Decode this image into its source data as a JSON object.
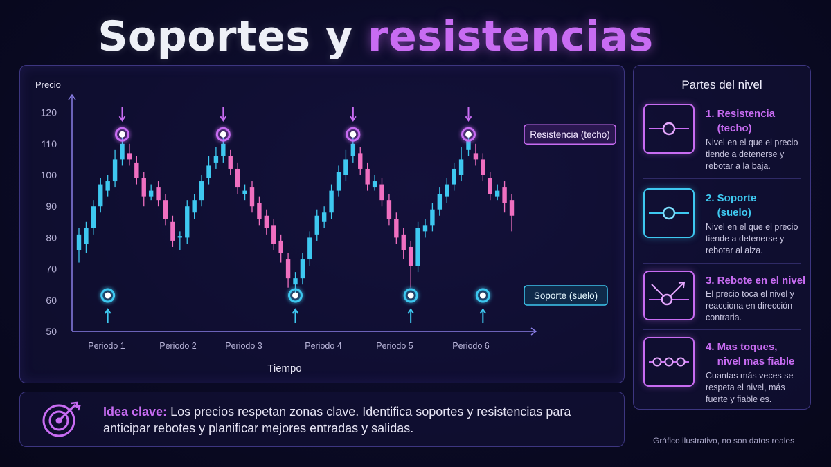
{
  "title": {
    "part1": "Soportes y",
    "part2": "resistencias"
  },
  "colors": {
    "resistance": "#c86cf2",
    "support": "#3ec8f0",
    "candle_up": "#3ec8f0",
    "candle_down": "#f06fc0",
    "axis": "#8a7ee6"
  },
  "chart_data": {
    "type": "candlestick",
    "ylabel": "Precio",
    "xlabel": "Tiempo",
    "y_ticks": [
      120,
      110,
      100,
      90,
      80,
      70,
      60,
      50
    ],
    "ylim": [
      50,
      125
    ],
    "x_tick_labels": [
      "Periodo 1",
      "Periodo 2",
      "Periodo 3",
      "Periodo 4",
      "Periodo 5",
      "Periodo 6"
    ],
    "resistance_level": 113,
    "support_level": 61.5,
    "resistance_label": "Resistencia (techo)",
    "support_label": "Soporte (suelo)",
    "candles": [
      {
        "o": 76,
        "c": 81,
        "h": 83,
        "l": 72
      },
      {
        "o": 78,
        "c": 83,
        "h": 85,
        "l": 75
      },
      {
        "o": 83,
        "c": 90,
        "h": 92,
        "l": 81
      },
      {
        "o": 90,
        "c": 97,
        "h": 99,
        "l": 88
      },
      {
        "o": 95,
        "c": 98,
        "h": 100,
        "l": 93
      },
      {
        "o": 98,
        "c": 105,
        "h": 108,
        "l": 96
      },
      {
        "o": 105,
        "c": 110,
        "h": 113,
        "l": 103
      },
      {
        "o": 107,
        "c": 105,
        "h": 110,
        "l": 103
      },
      {
        "o": 104,
        "c": 99,
        "h": 106,
        "l": 97
      },
      {
        "o": 99,
        "c": 93,
        "h": 101,
        "l": 90
      },
      {
        "o": 93,
        "c": 95,
        "h": 97,
        "l": 92
      },
      {
        "o": 96,
        "c": 92,
        "h": 98,
        "l": 90
      },
      {
        "o": 92,
        "c": 86,
        "h": 94,
        "l": 84
      },
      {
        "o": 85,
        "c": 79,
        "h": 87,
        "l": 77
      },
      {
        "o": 80,
        "c": 80.5,
        "h": 82,
        "l": 76
      },
      {
        "o": 80,
        "c": 90,
        "h": 92,
        "l": 78
      },
      {
        "o": 88,
        "c": 92,
        "h": 94,
        "l": 86
      },
      {
        "o": 92,
        "c": 98,
        "h": 100,
        "l": 90
      },
      {
        "o": 99,
        "c": 103,
        "h": 106,
        "l": 97
      },
      {
        "o": 104,
        "c": 106,
        "h": 109,
        "l": 102
      },
      {
        "o": 106,
        "c": 110,
        "h": 113,
        "l": 104
      },
      {
        "o": 106,
        "c": 102,
        "h": 108,
        "l": 100
      },
      {
        "o": 102,
        "c": 96,
        "h": 104,
        "l": 94
      },
      {
        "o": 94,
        "c": 95,
        "h": 97,
        "l": 92
      },
      {
        "o": 96,
        "c": 90,
        "h": 98,
        "l": 88
      },
      {
        "o": 91,
        "c": 86,
        "h": 93,
        "l": 84
      },
      {
        "o": 87,
        "c": 83,
        "h": 89,
        "l": 81
      },
      {
        "o": 84,
        "c": 78,
        "h": 86,
        "l": 76
      },
      {
        "o": 79,
        "c": 75,
        "h": 81,
        "l": 72
      },
      {
        "o": 73,
        "c": 67,
        "h": 75,
        "l": 64
      },
      {
        "o": 65,
        "c": 67,
        "h": 69,
        "l": 62
      },
      {
        "o": 67,
        "c": 73,
        "h": 75,
        "l": 65
      },
      {
        "o": 73,
        "c": 80,
        "h": 82,
        "l": 71
      },
      {
        "o": 81,
        "c": 87,
        "h": 89,
        "l": 79
      },
      {
        "o": 85,
        "c": 88,
        "h": 90,
        "l": 83
      },
      {
        "o": 88,
        "c": 95,
        "h": 97,
        "l": 86
      },
      {
        "o": 95,
        "c": 101,
        "h": 103,
        "l": 93
      },
      {
        "o": 100,
        "c": 105,
        "h": 108,
        "l": 98
      },
      {
        "o": 106,
        "c": 110,
        "h": 113,
        "l": 104
      },
      {
        "o": 107,
        "c": 102,
        "h": 109,
        "l": 100
      },
      {
        "o": 102,
        "c": 97,
        "h": 104,
        "l": 95
      },
      {
        "o": 96,
        "c": 98,
        "h": 100,
        "l": 95
      },
      {
        "o": 97,
        "c": 92,
        "h": 99,
        "l": 90
      },
      {
        "o": 92,
        "c": 86,
        "h": 94,
        "l": 84
      },
      {
        "o": 86,
        "c": 80,
        "h": 88,
        "l": 78
      },
      {
        "o": 81,
        "c": 76,
        "h": 83,
        "l": 73
      },
      {
        "o": 77,
        "c": 71,
        "h": 79,
        "l": 64
      },
      {
        "o": 71,
        "c": 83,
        "h": 85,
        "l": 69
      },
      {
        "o": 82,
        "c": 84,
        "h": 86,
        "l": 80
      },
      {
        "o": 84,
        "c": 89,
        "h": 91,
        "l": 82
      },
      {
        "o": 89,
        "c": 94,
        "h": 96,
        "l": 87
      },
      {
        "o": 93,
        "c": 97,
        "h": 99,
        "l": 91
      },
      {
        "o": 97,
        "c": 102,
        "h": 104,
        "l": 95
      },
      {
        "o": 100,
        "c": 105,
        "h": 109,
        "l": 98
      },
      {
        "o": 108,
        "c": 111,
        "h": 113,
        "l": 106
      },
      {
        "o": 107,
        "c": 105,
        "h": 110,
        "l": 103
      },
      {
        "o": 105,
        "c": 100,
        "h": 107,
        "l": 98
      },
      {
        "o": 99,
        "c": 94,
        "h": 101,
        "l": 92
      },
      {
        "o": 93,
        "c": 95,
        "h": 97,
        "l": 92
      },
      {
        "o": 96,
        "c": 91,
        "h": 98,
        "l": 88
      },
      {
        "o": 92,
        "c": 87,
        "h": 94,
        "l": 82
      }
    ],
    "resistance_touches": [
      6,
      20,
      38,
      54
    ],
    "support_touches": [
      4,
      30,
      46,
      56
    ]
  },
  "side": {
    "title": "Partes del nivel",
    "items": [
      {
        "num_title": "1. Resistencia\n    (techo)",
        "desc": "Nivel en el que el precio tiende a detenerse y rebotar a la baja.",
        "icon": "resistance-line-icon",
        "color": "#c86cf2"
      },
      {
        "num_title": "2. Soporte\n    (suelo)",
        "desc": "Nivel en el que el precio tiende a detenerse y rebotar al alza.",
        "icon": "support-line-icon",
        "color": "#3ec8f0"
      },
      {
        "num_title": "3. Rebote en el nivel",
        "desc": "El precio toca el nivel y reacciona en dirección contraria.",
        "icon": "bounce-icon",
        "color": "#c86cf2"
      },
      {
        "num_title": "4. Mas toques,\n    nivel mas fiable",
        "desc": "Cuantas más veces se respeta el nivel, más fuerte y fiable es.",
        "icon": "multi-touch-icon",
        "color": "#c86cf2"
      }
    ]
  },
  "idea": {
    "label": "Idea clave:",
    "text": "Los precios respetan zonas clave. Identifica soportes y resistencias para anticipar rebotes y planificar mejores entradas y salidas."
  },
  "footnote": "Gráfico ilustrativo, no son datos reales"
}
